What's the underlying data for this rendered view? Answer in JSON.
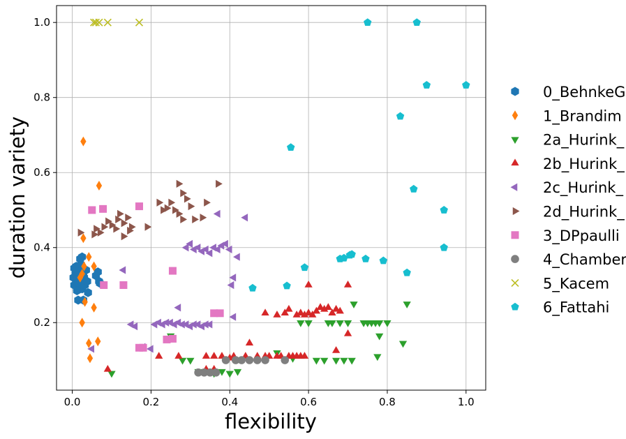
{
  "chart_data": {
    "type": "scatter",
    "title": "",
    "xlabel": "flexibility",
    "ylabel": "duration variety",
    "xlim": [
      -0.04,
      1.05
    ],
    "ylim": [
      0.02,
      1.045
    ],
    "grid": true,
    "legend_position": "right",
    "xticks": [
      0.0,
      0.2,
      0.4,
      0.6,
      0.8,
      1.0
    ],
    "xtick_labels": [
      "0.0",
      "0.2",
      "0.4",
      "0.6",
      "0.8",
      "1.0"
    ],
    "yticks": [
      0.2,
      0.4,
      0.6,
      0.8,
      1.0
    ],
    "ytick_labels": [
      "0.2",
      "0.4",
      "0.6",
      "0.8",
      "1.0"
    ],
    "series": [
      {
        "name": "0_BehnkeG",
        "marker": "hexagon",
        "color": "#1f77b4",
        "points": [
          [
            0.003,
            0.32
          ],
          [
            0.005,
            0.3
          ],
          [
            0.008,
            0.33
          ],
          [
            0.01,
            0.31
          ],
          [
            0.012,
            0.29
          ],
          [
            0.014,
            0.32
          ],
          [
            0.015,
            0.335
          ],
          [
            0.018,
            0.3
          ],
          [
            0.02,
            0.345
          ],
          [
            0.022,
            0.31
          ],
          [
            0.025,
            0.29
          ],
          [
            0.028,
            0.33
          ],
          [
            0.03,
            0.32
          ],
          [
            0.032,
            0.3
          ],
          [
            0.035,
            0.34
          ],
          [
            0.038,
            0.31
          ],
          [
            0.02,
            0.37
          ],
          [
            0.025,
            0.375
          ],
          [
            0.015,
            0.26
          ],
          [
            0.028,
            0.26
          ],
          [
            0.04,
            0.28
          ],
          [
            0.01,
            0.35
          ],
          [
            0.005,
            0.345
          ],
          [
            0.018,
            0.35
          ],
          [
            0.022,
            0.355
          ],
          [
            0.012,
            0.285
          ],
          [
            0.065,
            0.335
          ],
          [
            0.068,
            0.31
          ],
          [
            0.07,
            0.305
          ],
          [
            0.06,
            0.325
          ]
        ]
      },
      {
        "name": "1_Brandim",
        "marker": "thin_diamond",
        "color": "#ff7f0e",
        "points": [
          [
            0.028,
            0.683
          ],
          [
            0.068,
            0.565
          ],
          [
            0.028,
            0.425
          ],
          [
            0.042,
            0.375
          ],
          [
            0.055,
            0.35
          ],
          [
            0.03,
            0.35
          ],
          [
            0.025,
            0.33
          ],
          [
            0.02,
            0.32
          ],
          [
            0.032,
            0.255
          ],
          [
            0.055,
            0.24
          ],
          [
            0.025,
            0.2
          ],
          [
            0.065,
            0.15
          ],
          [
            0.042,
            0.145
          ],
          [
            0.045,
            0.105
          ]
        ]
      },
      {
        "name": "2a_Hurink_",
        "marker": "triangle_down",
        "color": "#2ca02c",
        "points": [
          [
            0.1,
            0.065
          ],
          [
            0.25,
            0.165
          ],
          [
            0.3,
            0.1
          ],
          [
            0.28,
            0.1
          ],
          [
            0.32,
            0.07
          ],
          [
            0.36,
            0.065
          ],
          [
            0.38,
            0.07
          ],
          [
            0.4,
            0.065
          ],
          [
            0.42,
            0.07
          ],
          [
            0.52,
            0.12
          ],
          [
            0.56,
            0.105
          ],
          [
            0.58,
            0.2
          ],
          [
            0.6,
            0.2
          ],
          [
            0.62,
            0.1
          ],
          [
            0.64,
            0.1
          ],
          [
            0.65,
            0.2
          ],
          [
            0.66,
            0.2
          ],
          [
            0.67,
            0.1
          ],
          [
            0.68,
            0.2
          ],
          [
            0.69,
            0.1
          ],
          [
            0.7,
            0.2
          ],
          [
            0.71,
            0.1
          ],
          [
            0.715,
            0.25
          ],
          [
            0.74,
            0.2
          ],
          [
            0.75,
            0.2
          ],
          [
            0.76,
            0.2
          ],
          [
            0.77,
            0.2
          ],
          [
            0.775,
            0.11
          ],
          [
            0.78,
            0.2
          ],
          [
            0.78,
            0.165
          ],
          [
            0.8,
            0.2
          ],
          [
            0.84,
            0.145
          ],
          [
            0.85,
            0.25
          ]
        ]
      },
      {
        "name": "2b_Hurink_",
        "marker": "triangle_up",
        "color": "#d62728",
        "points": [
          [
            0.09,
            0.075
          ],
          [
            0.22,
            0.11
          ],
          [
            0.27,
            0.11
          ],
          [
            0.34,
            0.11
          ],
          [
            0.36,
            0.11
          ],
          [
            0.38,
            0.11
          ],
          [
            0.4,
            0.105
          ],
          [
            0.41,
            0.11
          ],
          [
            0.44,
            0.11
          ],
          [
            0.45,
            0.145
          ],
          [
            0.47,
            0.11
          ],
          [
            0.49,
            0.11
          ],
          [
            0.5,
            0.11
          ],
          [
            0.52,
            0.11
          ],
          [
            0.53,
            0.11
          ],
          [
            0.55,
            0.11
          ],
          [
            0.56,
            0.11
          ],
          [
            0.57,
            0.11
          ],
          [
            0.58,
            0.11
          ],
          [
            0.59,
            0.11
          ],
          [
            0.34,
            0.075
          ],
          [
            0.36,
            0.075
          ],
          [
            0.49,
            0.225
          ],
          [
            0.52,
            0.22
          ],
          [
            0.54,
            0.225
          ],
          [
            0.55,
            0.235
          ],
          [
            0.57,
            0.22
          ],
          [
            0.58,
            0.225
          ],
          [
            0.59,
            0.22
          ],
          [
            0.6,
            0.225
          ],
          [
            0.61,
            0.22
          ],
          [
            0.62,
            0.23
          ],
          [
            0.63,
            0.24
          ],
          [
            0.64,
            0.235
          ],
          [
            0.65,
            0.24
          ],
          [
            0.66,
            0.225
          ],
          [
            0.67,
            0.235
          ],
          [
            0.68,
            0.23
          ],
          [
            0.6,
            0.3
          ],
          [
            0.7,
            0.3
          ],
          [
            0.7,
            0.17
          ],
          [
            0.67,
            0.125
          ]
        ]
      },
      {
        "name": "2c_Hurink_",
        "marker": "triangle_left",
        "color": "#9467bd",
        "points": [
          [
            0.05,
            0.13
          ],
          [
            0.13,
            0.34
          ],
          [
            0.15,
            0.195
          ],
          [
            0.16,
            0.19
          ],
          [
            0.18,
            0.135
          ],
          [
            0.2,
            0.13
          ],
          [
            0.21,
            0.195
          ],
          [
            0.22,
            0.2
          ],
          [
            0.23,
            0.195
          ],
          [
            0.24,
            0.2
          ],
          [
            0.25,
            0.2
          ],
          [
            0.26,
            0.195
          ],
          [
            0.27,
            0.2
          ],
          [
            0.28,
            0.195
          ],
          [
            0.29,
            0.195
          ],
          [
            0.3,
            0.19
          ],
          [
            0.31,
            0.195
          ],
          [
            0.32,
            0.195
          ],
          [
            0.33,
            0.19
          ],
          [
            0.34,
            0.195
          ],
          [
            0.35,
            0.195
          ],
          [
            0.27,
            0.24
          ],
          [
            0.29,
            0.4
          ],
          [
            0.3,
            0.41
          ],
          [
            0.31,
            0.395
          ],
          [
            0.32,
            0.4
          ],
          [
            0.33,
            0.39
          ],
          [
            0.34,
            0.395
          ],
          [
            0.35,
            0.385
          ],
          [
            0.36,
            0.4
          ],
          [
            0.37,
            0.395
          ],
          [
            0.38,
            0.405
          ],
          [
            0.39,
            0.41
          ],
          [
            0.4,
            0.395
          ],
          [
            0.405,
            0.3
          ],
          [
            0.41,
            0.32
          ],
          [
            0.42,
            0.375
          ],
          [
            0.44,
            0.48
          ],
          [
            0.37,
            0.49
          ],
          [
            0.41,
            0.215
          ]
        ]
      },
      {
        "name": "2d_Hurink_",
        "marker": "triangle_right",
        "color": "#8c564b",
        "points": [
          [
            0.02,
            0.44
          ],
          [
            0.055,
            0.435
          ],
          [
            0.06,
            0.45
          ],
          [
            0.07,
            0.44
          ],
          [
            0.08,
            0.455
          ],
          [
            0.09,
            0.47
          ],
          [
            0.1,
            0.46
          ],
          [
            0.11,
            0.45
          ],
          [
            0.115,
            0.475
          ],
          [
            0.12,
            0.49
          ],
          [
            0.13,
            0.465
          ],
          [
            0.14,
            0.48
          ],
          [
            0.145,
            0.445
          ],
          [
            0.15,
            0.455
          ],
          [
            0.13,
            0.43
          ],
          [
            0.19,
            0.455
          ],
          [
            0.22,
            0.52
          ],
          [
            0.23,
            0.5
          ],
          [
            0.24,
            0.505
          ],
          [
            0.25,
            0.52
          ],
          [
            0.26,
            0.5
          ],
          [
            0.27,
            0.49
          ],
          [
            0.28,
            0.475
          ],
          [
            0.27,
            0.57
          ],
          [
            0.28,
            0.545
          ],
          [
            0.29,
            0.53
          ],
          [
            0.3,
            0.51
          ],
          [
            0.31,
            0.475
          ],
          [
            0.33,
            0.48
          ],
          [
            0.34,
            0.52
          ],
          [
            0.37,
            0.57
          ]
        ]
      },
      {
        "name": "3_DPpaulli",
        "marker": "square",
        "color": "#e377c2",
        "points": [
          [
            0.05,
            0.5
          ],
          [
            0.078,
            0.503
          ],
          [
            0.17,
            0.51
          ],
          [
            0.08,
            0.3
          ],
          [
            0.13,
            0.3
          ],
          [
            0.255,
            0.338
          ],
          [
            0.36,
            0.225
          ],
          [
            0.375,
            0.225
          ],
          [
            0.24,
            0.155
          ],
          [
            0.255,
            0.157
          ],
          [
            0.17,
            0.133
          ],
          [
            0.18,
            0.133
          ]
        ]
      },
      {
        "name": "4_Chamber",
        "marker": "circle",
        "color": "#7f7f7f",
        "points": [
          [
            0.32,
            0.067
          ],
          [
            0.335,
            0.067
          ],
          [
            0.35,
            0.067
          ],
          [
            0.365,
            0.067
          ],
          [
            0.39,
            0.1
          ],
          [
            0.415,
            0.1
          ],
          [
            0.43,
            0.1
          ],
          [
            0.45,
            0.1
          ],
          [
            0.47,
            0.1
          ],
          [
            0.49,
            0.1
          ],
          [
            0.54,
            0.1
          ]
        ]
      },
      {
        "name": "5_Kacem",
        "marker": "x",
        "color": "#bcbd22",
        "points": [
          [
            0.055,
            1.0
          ],
          [
            0.06,
            1.0
          ],
          [
            0.068,
            1.0
          ],
          [
            0.09,
            1.0
          ],
          [
            0.17,
            1.0
          ]
        ]
      },
      {
        "name": "6_Fattahi",
        "marker": "pentagon",
        "color": "#17becf",
        "points": [
          [
            0.75,
            1.0
          ],
          [
            0.875,
            1.0
          ],
          [
            0.9,
            0.833
          ],
          [
            1.0,
            0.833
          ],
          [
            0.833,
            0.75
          ],
          [
            0.555,
            0.667
          ],
          [
            0.867,
            0.556
          ],
          [
            0.944,
            0.5
          ],
          [
            0.944,
            0.4
          ],
          [
            0.59,
            0.347
          ],
          [
            0.68,
            0.37
          ],
          [
            0.69,
            0.372
          ],
          [
            0.705,
            0.38
          ],
          [
            0.71,
            0.382
          ],
          [
            0.745,
            0.37
          ],
          [
            0.79,
            0.365
          ],
          [
            0.85,
            0.333
          ],
          [
            0.458,
            0.292
          ],
          [
            0.545,
            0.298
          ]
        ]
      }
    ]
  }
}
